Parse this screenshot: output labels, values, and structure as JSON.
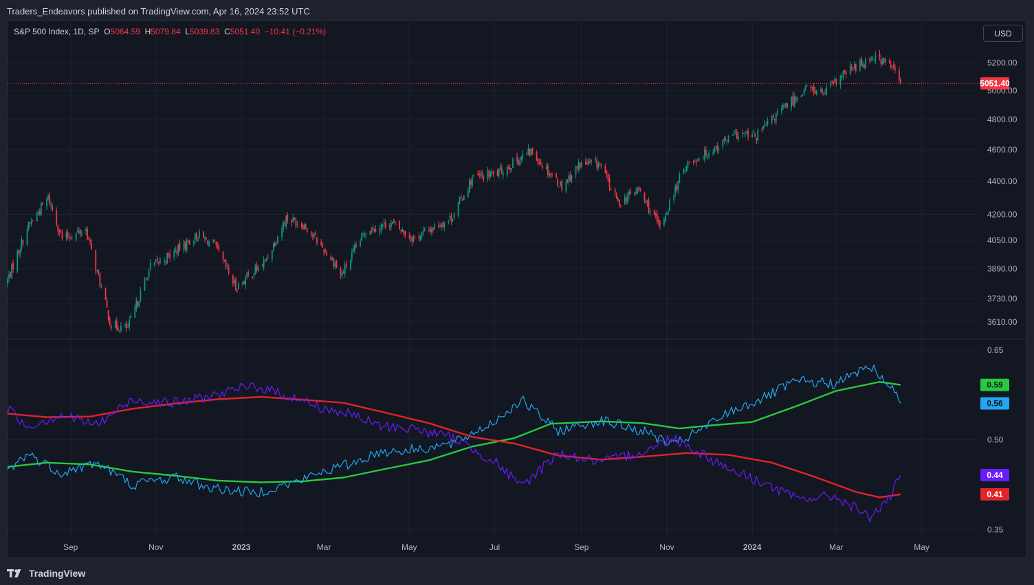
{
  "header": {
    "publisher": "Traders_Endeavors published on TradingView.com, Apr 16, 2024 23:52 UTC"
  },
  "legend": {
    "symbol": "S&P 500 Index, 1D, SP",
    "o_label": "O",
    "o_value": "5064.59",
    "h_label": "H",
    "h_value": "5079.84",
    "l_label": "L",
    "l_value": "5039.83",
    "c_label": "C",
    "c_value": "5051.40",
    "change": "−10.41 (−0.21%)"
  },
  "currency_button": "USD",
  "footer": {
    "logo_text": "TradingView"
  },
  "colors": {
    "up": "#089981",
    "down": "#f23645",
    "green_line": "#27c93f",
    "red_line": "#e0242a",
    "blue_line": "#22a7f0",
    "purple_line": "#6a1bff"
  },
  "chart_data": [
    {
      "type": "candlestick",
      "title": "S&P 500 Index, 1D, SP",
      "y_scale": "log",
      "ylim": [
        3530,
        5350
      ],
      "ytick_labels": [
        "5200.00",
        "5000.00",
        "4800.00",
        "4600.00",
        "4400.00",
        "4200.00",
        "4050.00",
        "3890.00",
        "3730.00",
        "3610.00"
      ],
      "x_tick_labels": [
        "Sep",
        "Nov",
        "2023",
        "Mar",
        "May",
        "Jul",
        "Sep",
        "Nov",
        "2024",
        "Mar",
        "May"
      ],
      "last_price": "5051.40",
      "close_path": [
        [
          "2022-07-18",
          3830
        ],
        [
          "2022-08-01",
          4120
        ],
        [
          "2022-08-16",
          4300
        ],
        [
          "2022-08-26",
          4060
        ],
        [
          "2022-09-12",
          4110
        ],
        [
          "2022-09-30",
          3590
        ],
        [
          "2022-10-12",
          3580
        ],
        [
          "2022-10-28",
          3900
        ],
        [
          "2022-11-10",
          3960
        ],
        [
          "2022-12-01",
          4080
        ],
        [
          "2022-12-13",
          4020
        ],
        [
          "2022-12-28",
          3790
        ],
        [
          "2023-01-18",
          3930
        ],
        [
          "2023-02-02",
          4180
        ],
        [
          "2023-02-15",
          4140
        ],
        [
          "2023-03-09",
          3920
        ],
        [
          "2023-03-13",
          3850
        ],
        [
          "2023-03-31",
          4110
        ],
        [
          "2023-04-18",
          4150
        ],
        [
          "2023-05-04",
          4060
        ],
        [
          "2023-05-31",
          4180
        ],
        [
          "2023-06-15",
          4420
        ],
        [
          "2023-07-03",
          4450
        ],
        [
          "2023-07-27",
          4590
        ],
        [
          "2023-08-18",
          4370
        ],
        [
          "2023-08-31",
          4510
        ],
        [
          "2023-09-14",
          4510
        ],
        [
          "2023-09-27",
          4270
        ],
        [
          "2023-10-12",
          4350
        ],
        [
          "2023-10-27",
          4120
        ],
        [
          "2023-11-14",
          4500
        ],
        [
          "2023-12-01",
          4590
        ],
        [
          "2023-12-20",
          4700
        ],
        [
          "2024-01-04",
          4690
        ],
        [
          "2024-01-19",
          4840
        ],
        [
          "2024-02-09",
          5020
        ],
        [
          "2024-02-21",
          4980
        ],
        [
          "2024-03-08",
          5130
        ],
        [
          "2024-03-28",
          5250
        ],
        [
          "2024-04-10",
          5170
        ],
        [
          "2024-04-16",
          5051.4
        ]
      ]
    },
    {
      "type": "line",
      "ylim": [
        0.34,
        0.665
      ],
      "ytick_labels": [
        "0.65",
        "0.50",
        "0.35"
      ],
      "series": [
        {
          "name": "",
          "color": "#27c93f",
          "last_value": "0.59",
          "points": [
            [
              "2022-07-18",
              0.455
            ],
            [
              "2022-08-15",
              0.462
            ],
            [
              "2022-09-15",
              0.459
            ],
            [
              "2022-10-15",
              0.447
            ],
            [
              "2022-11-15",
              0.44
            ],
            [
              "2022-12-15",
              0.432
            ],
            [
              "2023-01-15",
              0.429
            ],
            [
              "2023-02-15",
              0.431
            ],
            [
              "2023-03-15",
              0.437
            ],
            [
              "2023-04-15",
              0.452
            ],
            [
              "2023-05-15",
              0.466
            ],
            [
              "2023-06-15",
              0.489
            ],
            [
              "2023-07-15",
              0.503
            ],
            [
              "2023-08-10",
              0.527
            ],
            [
              "2023-09-15",
              0.531
            ],
            [
              "2023-10-15",
              0.528
            ],
            [
              "2023-11-10",
              0.519
            ],
            [
              "2023-12-01",
              0.524
            ],
            [
              "2024-01-01",
              0.53
            ],
            [
              "2024-02-01",
              0.556
            ],
            [
              "2024-03-01",
              0.582
            ],
            [
              "2024-04-01",
              0.597
            ],
            [
              "2024-04-16",
              0.592
            ]
          ]
        },
        {
          "name": "",
          "color": "#22a7f0",
          "last_value": "0.56",
          "points": [
            [
              "2022-07-18",
              0.447
            ],
            [
              "2022-08-01",
              0.477
            ],
            [
              "2022-08-25",
              0.445
            ],
            [
              "2022-09-20",
              0.462
            ],
            [
              "2022-10-15",
              0.425
            ],
            [
              "2022-11-15",
              0.438
            ],
            [
              "2022-12-10",
              0.42
            ],
            [
              "2023-01-10",
              0.411
            ],
            [
              "2023-02-10",
              0.43
            ],
            [
              "2023-03-01",
              0.448
            ],
            [
              "2023-03-20",
              0.46
            ],
            [
              "2023-04-10",
              0.48
            ],
            [
              "2023-05-01",
              0.483
            ],
            [
              "2023-06-01",
              0.493
            ],
            [
              "2023-07-01",
              0.531
            ],
            [
              "2023-07-20",
              0.567
            ],
            [
              "2023-08-15",
              0.515
            ],
            [
              "2023-09-15",
              0.533
            ],
            [
              "2023-10-20",
              0.511
            ],
            [
              "2023-11-05",
              0.49
            ],
            [
              "2023-11-30",
              0.523
            ],
            [
              "2023-12-15",
              0.546
            ],
            [
              "2024-01-10",
              0.571
            ],
            [
              "2024-02-01",
              0.598
            ],
            [
              "2024-03-01",
              0.594
            ],
            [
              "2024-03-25",
              0.624
            ],
            [
              "2024-04-08",
              0.592
            ],
            [
              "2024-04-16",
              0.561
            ]
          ]
        },
        {
          "name": "",
          "color": "#e0242a",
          "last_value": "0.41",
          "points": [
            [
              "2022-07-18",
              0.544
            ],
            [
              "2022-08-15",
              0.538
            ],
            [
              "2022-09-15",
              0.539
            ],
            [
              "2022-10-15",
              0.552
            ],
            [
              "2022-11-15",
              0.561
            ],
            [
              "2022-12-15",
              0.568
            ],
            [
              "2023-01-15",
              0.572
            ],
            [
              "2023-02-15",
              0.567
            ],
            [
              "2023-03-15",
              0.562
            ],
            [
              "2023-04-15",
              0.545
            ],
            [
              "2023-05-15",
              0.528
            ],
            [
              "2023-06-15",
              0.505
            ],
            [
              "2023-07-15",
              0.494
            ],
            [
              "2023-08-15",
              0.474
            ],
            [
              "2023-09-15",
              0.467
            ],
            [
              "2023-10-15",
              0.472
            ],
            [
              "2023-11-15",
              0.478
            ],
            [
              "2023-12-15",
              0.475
            ],
            [
              "2024-01-15",
              0.462
            ],
            [
              "2024-02-15",
              0.438
            ],
            [
              "2024-03-15",
              0.413
            ],
            [
              "2024-04-01",
              0.404
            ],
            [
              "2024-04-16",
              0.409
            ]
          ]
        },
        {
          "name": "",
          "color": "#6a1bff",
          "last_value": "0.44",
          "points": [
            [
              "2022-07-18",
              0.553
            ],
            [
              "2022-08-01",
              0.522
            ],
            [
              "2022-08-25",
              0.542
            ],
            [
              "2022-09-20",
              0.525
            ],
            [
              "2022-10-15",
              0.567
            ],
            [
              "2022-11-15",
              0.562
            ],
            [
              "2022-12-10",
              0.573
            ],
            [
              "2023-01-10",
              0.591
            ],
            [
              "2023-02-10",
              0.569
            ],
            [
              "2023-03-01",
              0.552
            ],
            [
              "2023-03-20",
              0.543
            ],
            [
              "2023-04-10",
              0.523
            ],
            [
              "2023-05-01",
              0.52
            ],
            [
              "2023-06-01",
              0.504
            ],
            [
              "2023-07-01",
              0.464
            ],
            [
              "2023-07-20",
              0.421
            ],
            [
              "2023-08-15",
              0.478
            ],
            [
              "2023-09-15",
              0.462
            ],
            [
              "2023-10-20",
              0.484
            ],
            [
              "2023-11-05",
              0.505
            ],
            [
              "2023-11-30",
              0.472
            ],
            [
              "2023-12-15",
              0.452
            ],
            [
              "2024-01-10",
              0.427
            ],
            [
              "2024-02-01",
              0.402
            ],
            [
              "2024-03-01",
              0.405
            ],
            [
              "2024-03-25",
              0.371
            ],
            [
              "2024-04-08",
              0.401
            ],
            [
              "2024-04-16",
              0.441
            ]
          ]
        }
      ]
    }
  ]
}
